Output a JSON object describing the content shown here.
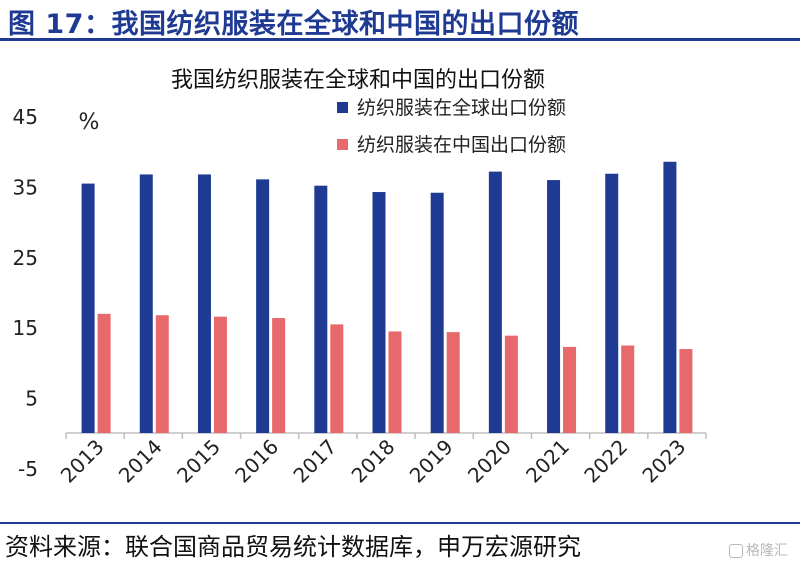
{
  "figure": {
    "title": "图 17：我国纺织服装在全球和中国的出口份额",
    "source": "资料来源：联合国商品贸易统计数据库，申万宏源研究",
    "watermark": "格隆汇"
  },
  "colors": {
    "accent": "#1f3a93",
    "series_global": "#1f3a93",
    "series_china": "#e8696b"
  },
  "chart_data": {
    "type": "bar",
    "title": "我国纺织服装在全球和中国的出口份额",
    "unit_label": "%",
    "categories": [
      "2013",
      "2014",
      "2015",
      "2016",
      "2017",
      "2018",
      "2019",
      "2020",
      "2021",
      "2022",
      "2023"
    ],
    "series": [
      {
        "name": "纺织服装在全球出口份额",
        "color": "#1f3a93",
        "values": [
          35.4,
          36.7,
          36.7,
          36.0,
          35.1,
          34.2,
          34.1,
          37.1,
          35.9,
          36.8,
          38.5
        ]
      },
      {
        "name": "纺织服装在中国出口份额",
        "color": "#e8696b",
        "values": [
          16.9,
          16.7,
          16.5,
          16.3,
          15.4,
          14.4,
          14.3,
          13.8,
          12.2,
          12.4,
          11.9
        ]
      }
    ],
    "ylim": [
      -5,
      45
    ],
    "yticks": [
      45,
      35,
      25,
      15,
      5,
      -5
    ],
    "legend_position": "top-right",
    "grid": false
  }
}
